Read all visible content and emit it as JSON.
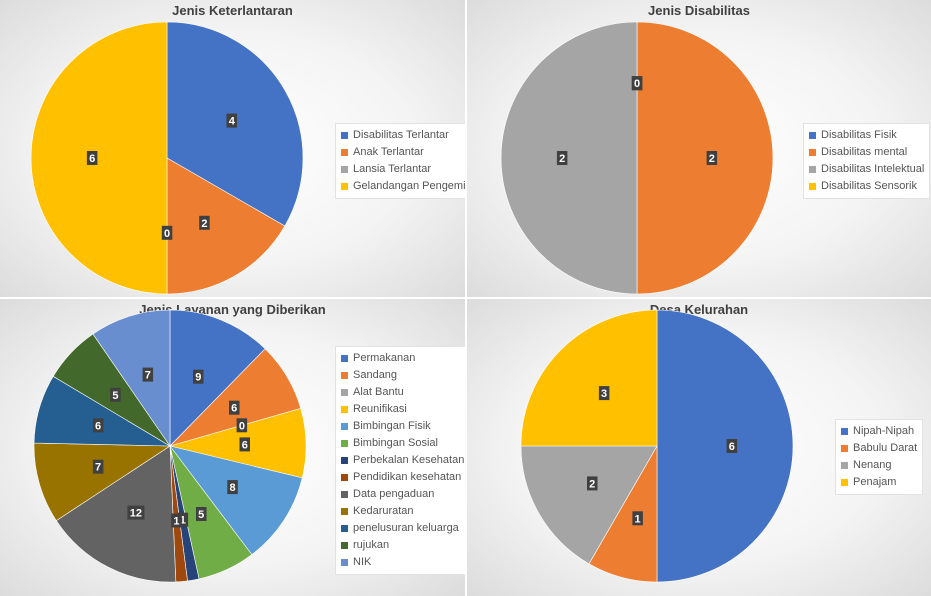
{
  "chart_data": [
    {
      "type": "pie",
      "title": "Jenis Keterlantaran",
      "categories": [
        "Disabilitas Terlantar",
        "Anak Terlantar",
        "Lansia Terlantar",
        "Gelandangan Pengemis"
      ],
      "values": [
        4,
        2,
        0,
        6
      ],
      "colors": [
        "#4472C4",
        "#ED7D31",
        "#A5A5A5",
        "#FFC000"
      ],
      "legend": "right"
    },
    {
      "type": "pie",
      "title": "Jenis Disabilitas",
      "categories": [
        "Disabilitas Fisik",
        "Disabilitas mental",
        "Disabilitas Intelektual",
        "Disabilitas Sensorik"
      ],
      "values": [
        0,
        2,
        2,
        0
      ],
      "colors": [
        "#4472C4",
        "#ED7D31",
        "#A5A5A5",
        "#FFC000"
      ],
      "legend": "right"
    },
    {
      "type": "pie",
      "title": "Jenis Layanan yang Diberikan",
      "categories": [
        "Permakanan",
        "Sandang",
        "Alat Bantu",
        "Reunifikasi",
        "Bimbingan Fisik",
        "Bimbingan Sosial",
        "Perbekalan Kesehatan",
        "Pendidikan kesehatan",
        "Data pengaduan",
        "Kedaruratan",
        "penelusuran keluarga",
        "rujukan",
        "NIK"
      ],
      "values": [
        9,
        6,
        0,
        6,
        8,
        5,
        1,
        1,
        12,
        7,
        6,
        5,
        7
      ],
      "colors": [
        "#4472C4",
        "#ED7D31",
        "#A5A5A5",
        "#FFC000",
        "#5B9BD5",
        "#70AD47",
        "#264478",
        "#9E480E",
        "#636363",
        "#997300",
        "#255E91",
        "#43682B",
        "#698ED0"
      ],
      "legend": "right"
    },
    {
      "type": "pie",
      "title": "Desa Kelurahan",
      "categories": [
        "Nipah-Nipah",
        "Babulu Darat",
        "Nenang",
        "Penajam"
      ],
      "values": [
        6,
        1,
        2,
        3
      ],
      "colors": [
        "#4472C4",
        "#ED7D31",
        "#A5A5A5",
        "#FFC000"
      ],
      "legend": "right"
    }
  ]
}
